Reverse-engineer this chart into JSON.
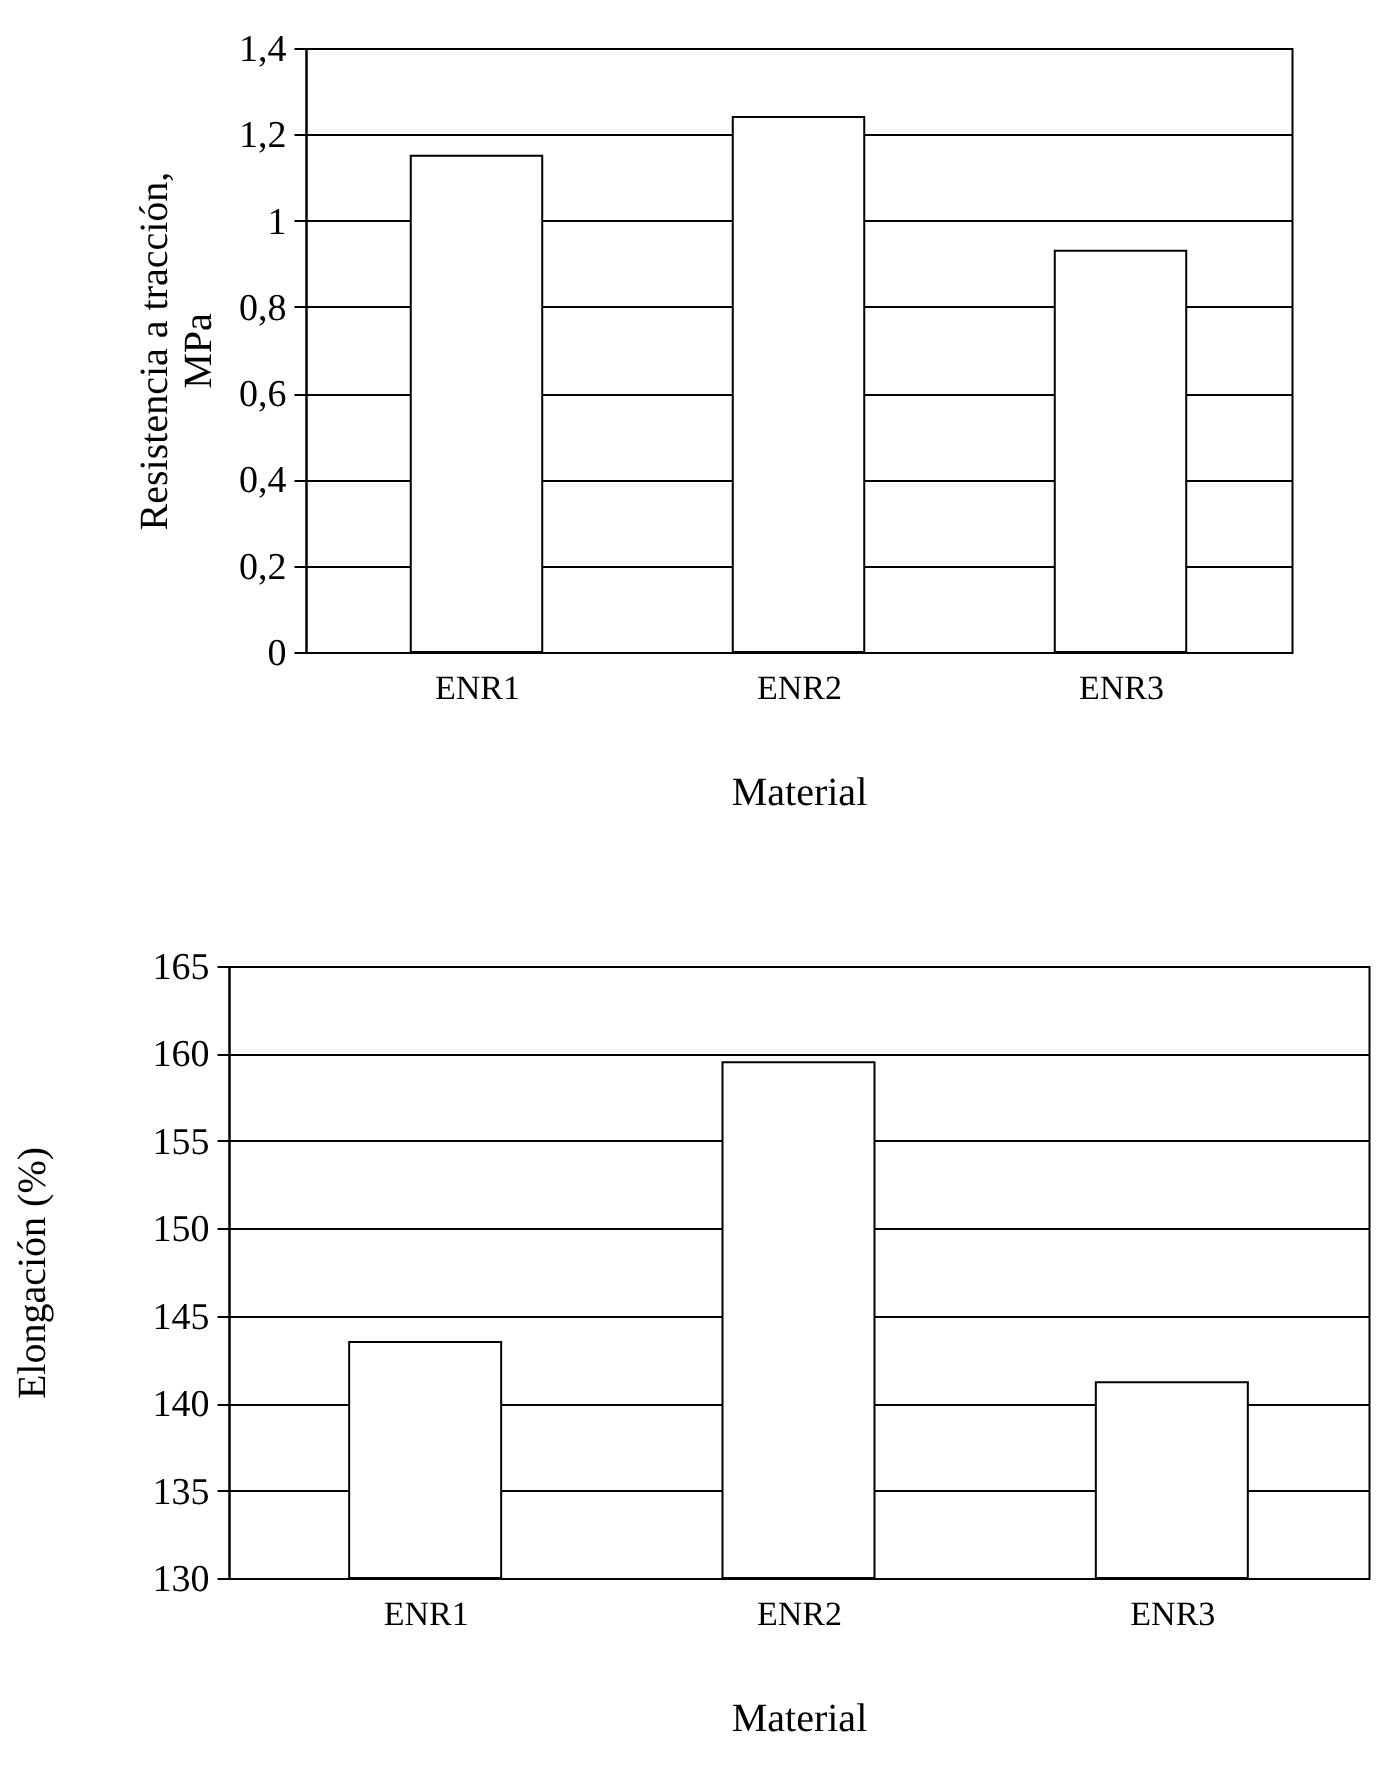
{
  "chart_data": [
    {
      "type": "bar",
      "xlabel": "Material",
      "ylabel": "Resistencia a tracción, MPa",
      "categories": [
        "ENR1",
        "ENR2",
        "ENR3"
      ],
      "values": [
        1.15,
        1.24,
        0.93
      ],
      "color": "#ffffff",
      "ylim": [
        0,
        1.4
      ],
      "yticks": [
        0,
        {
          "value": 0.2,
          "label": "0,2"
        },
        {
          "value": 0.4,
          "label": "0,4"
        },
        {
          "value": 0.6,
          "label": "0,6"
        },
        {
          "value": 0.8,
          "label": "0,8"
        },
        1,
        {
          "value": 1.2,
          "label": "1,2"
        },
        {
          "value": 1.4,
          "label": "1,4"
        }
      ],
      "grid": "y"
    },
    {
      "type": "bar",
      "xlabel": "Material",
      "ylabel": "Elongación (%)",
      "categories": [
        "ENR1",
        "ENR2",
        "ENR3"
      ],
      "values": [
        143.5,
        159.5,
        141.2
      ],
      "color": "#ffffff",
      "ylim": [
        130,
        165
      ],
      "yticks": [
        130,
        135,
        140,
        145,
        150,
        155,
        160,
        165
      ],
      "grid": "y"
    }
  ]
}
